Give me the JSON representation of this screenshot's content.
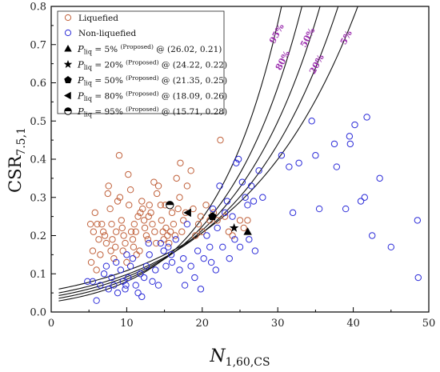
{
  "chart_data": {
    "type": "scatter",
    "xlabel_main": "N",
    "xlabel_sub": "1,60,CS",
    "ylabel_main": "CSR",
    "ylabel_sub": "7.5,1",
    "xlim": [
      0,
      50
    ],
    "ylim": [
      0.0,
      0.8
    ],
    "xticks": [
      "0",
      "10",
      "20",
      "30",
      "40",
      "50"
    ],
    "yticks": [
      "0.0",
      "0.1",
      "0.2",
      "0.3",
      "0.4",
      "0.5",
      "0.6",
      "0.7",
      "0.8"
    ],
    "grid": false,
    "legend_position": "top-left",
    "colors": {
      "liquefied": "#c0603a",
      "non_liquefied": "#2a2ad8",
      "curve": "#111111",
      "curve_label": "#9b2fae"
    },
    "series": [
      {
        "name": "Liquefied",
        "marker": "open-circle",
        "points": [
          [
            5.2,
            0.23
          ],
          [
            5.8,
            0.26
          ],
          [
            5.6,
            0.21
          ],
          [
            6.1,
            0.23
          ],
          [
            6.3,
            0.19
          ],
          [
            5.5,
            0.16
          ],
          [
            5.3,
            0.13
          ],
          [
            6.0,
            0.11
          ],
          [
            6.5,
            0.15
          ],
          [
            6.9,
            0.21
          ],
          [
            7.3,
            0.18
          ],
          [
            7.5,
            0.31
          ],
          [
            7.6,
            0.33
          ],
          [
            7.8,
            0.27
          ],
          [
            8.0,
            0.23
          ],
          [
            8.1,
            0.19
          ],
          [
            7.9,
            0.16
          ],
          [
            8.3,
            0.14
          ],
          [
            8.6,
            0.21
          ],
          [
            8.8,
            0.29
          ],
          [
            9.0,
            0.41
          ],
          [
            9.1,
            0.3
          ],
          [
            9.3,
            0.24
          ],
          [
            9.4,
            0.22
          ],
          [
            9.6,
            0.2
          ],
          [
            9.8,
            0.18
          ],
          [
            9.5,
            0.16
          ],
          [
            10.0,
            0.13
          ],
          [
            10.2,
            0.36
          ],
          [
            10.5,
            0.32
          ],
          [
            10.3,
            0.28
          ],
          [
            10.6,
            0.21
          ],
          [
            10.8,
            0.19
          ],
          [
            11.0,
            0.23
          ],
          [
            11.2,
            0.21
          ],
          [
            11.3,
            0.15
          ],
          [
            11.5,
            0.25
          ],
          [
            11.7,
            0.16
          ],
          [
            12.0,
            0.29
          ],
          [
            12.1,
            0.27
          ],
          [
            12.3,
            0.24
          ],
          [
            12.4,
            0.22
          ],
          [
            12.6,
            0.2
          ],
          [
            12.8,
            0.19
          ],
          [
            13.0,
            0.28
          ],
          [
            13.2,
            0.26
          ],
          [
            13.4,
            0.23
          ],
          [
            13.6,
            0.34
          ],
          [
            13.7,
            0.21
          ],
          [
            13.9,
            0.18
          ],
          [
            14.0,
            0.31
          ],
          [
            14.2,
            0.33
          ],
          [
            14.5,
            0.28
          ],
          [
            14.6,
            0.24
          ],
          [
            14.8,
            0.21
          ],
          [
            14.9,
            0.19
          ],
          [
            15.1,
            0.28
          ],
          [
            15.2,
            0.22
          ],
          [
            15.4,
            0.2
          ],
          [
            15.6,
            0.18
          ],
          [
            16.0,
            0.26
          ],
          [
            16.2,
            0.23
          ],
          [
            16.4,
            0.2
          ],
          [
            16.6,
            0.35
          ],
          [
            17.0,
            0.3
          ],
          [
            17.1,
            0.39
          ],
          [
            17.3,
            0.21
          ],
          [
            17.5,
            0.24
          ],
          [
            17.8,
            0.26
          ],
          [
            18.0,
            0.33
          ],
          [
            18.5,
            0.37
          ],
          [
            18.8,
            0.27
          ],
          [
            19.1,
            0.2
          ],
          [
            19.5,
            0.23
          ],
          [
            19.8,
            0.25
          ],
          [
            20.0,
            0.21
          ],
          [
            20.5,
            0.28
          ],
          [
            21.0,
            0.24
          ],
          [
            21.5,
            0.26
          ],
          [
            22.0,
            0.24
          ],
          [
            22.4,
            0.45
          ],
          [
            23.0,
            0.25
          ],
          [
            23.5,
            0.21
          ],
          [
            24.0,
            0.2
          ],
          [
            25.0,
            0.24
          ],
          [
            25.5,
            0.22
          ],
          [
            26.0,
            0.24
          ],
          [
            6.7,
            0.23
          ],
          [
            7.1,
            0.2
          ],
          [
            8.5,
            0.17
          ],
          [
            10.9,
            0.17
          ],
          [
            11.8,
            0.26
          ],
          [
            12.9,
            0.25
          ],
          [
            15.8,
            0.21
          ],
          [
            16.8,
            0.27
          ]
        ]
      },
      {
        "name": "Non-liquefied",
        "marker": "open-circle",
        "points": [
          [
            4.8,
            0.08
          ],
          [
            5.5,
            0.08
          ],
          [
            6.0,
            0.03
          ],
          [
            6.5,
            0.07
          ],
          [
            7.0,
            0.1
          ],
          [
            7.3,
            0.12
          ],
          [
            7.6,
            0.06
          ],
          [
            8.0,
            0.09
          ],
          [
            8.3,
            0.07
          ],
          [
            8.6,
            0.13
          ],
          [
            8.8,
            0.05
          ],
          [
            9.2,
            0.11
          ],
          [
            9.5,
            0.08
          ],
          [
            9.8,
            0.06
          ],
          [
            10.0,
            0.15
          ],
          [
            10.2,
            0.09
          ],
          [
            10.5,
            0.12
          ],
          [
            10.8,
            0.14
          ],
          [
            11.2,
            0.07
          ],
          [
            11.5,
            0.05
          ],
          [
            11.8,
            0.1
          ],
          [
            12.0,
            0.04
          ],
          [
            12.3,
            0.09
          ],
          [
            12.6,
            0.12
          ],
          [
            13.0,
            0.15
          ],
          [
            13.4,
            0.08
          ],
          [
            13.8,
            0.11
          ],
          [
            14.2,
            0.07
          ],
          [
            14.5,
            0.18
          ],
          [
            14.9,
            0.16
          ],
          [
            15.2,
            0.12
          ],
          [
            15.5,
            0.17
          ],
          [
            16.0,
            0.13
          ],
          [
            16.5,
            0.19
          ],
          [
            17.0,
            0.11
          ],
          [
            17.5,
            0.14
          ],
          [
            17.7,
            0.07
          ],
          [
            18.0,
            0.23
          ],
          [
            18.5,
            0.12
          ],
          [
            19.0,
            0.09
          ],
          [
            19.4,
            0.16
          ],
          [
            19.8,
            0.06
          ],
          [
            20.2,
            0.14
          ],
          [
            20.6,
            0.2
          ],
          [
            21.0,
            0.17
          ],
          [
            21.4,
            0.27
          ],
          [
            21.8,
            0.11
          ],
          [
            22.0,
            0.22
          ],
          [
            22.3,
            0.33
          ],
          [
            22.7,
            0.17
          ],
          [
            23.0,
            0.26
          ],
          [
            23.3,
            0.29
          ],
          [
            23.6,
            0.14
          ],
          [
            24.0,
            0.25
          ],
          [
            24.3,
            0.19
          ],
          [
            24.5,
            0.39
          ],
          [
            24.8,
            0.4
          ],
          [
            25.0,
            0.17
          ],
          [
            25.3,
            0.34
          ],
          [
            25.7,
            0.3
          ],
          [
            26.0,
            0.28
          ],
          [
            26.2,
            0.19
          ],
          [
            26.5,
            0.33
          ],
          [
            26.8,
            0.29
          ],
          [
            27.0,
            0.16
          ],
          [
            27.5,
            0.37
          ],
          [
            28.0,
            0.3
          ],
          [
            30.5,
            0.41
          ],
          [
            31.5,
            0.38
          ],
          [
            32.0,
            0.26
          ],
          [
            32.8,
            0.39
          ],
          [
            34.5,
            0.5
          ],
          [
            35.0,
            0.41
          ],
          [
            35.5,
            0.27
          ],
          [
            37.5,
            0.44
          ],
          [
            37.8,
            0.38
          ],
          [
            39.0,
            0.27
          ],
          [
            39.5,
            0.46
          ],
          [
            39.6,
            0.44
          ],
          [
            40.2,
            0.49
          ],
          [
            41.0,
            0.29
          ],
          [
            41.5,
            0.3
          ],
          [
            41.8,
            0.51
          ],
          [
            42.5,
            0.2
          ],
          [
            43.5,
            0.35
          ],
          [
            45.0,
            0.17
          ],
          [
            48.5,
            0.24
          ],
          [
            48.6,
            0.09
          ],
          [
            21.2,
            0.13
          ],
          [
            15.9,
            0.15
          ],
          [
            12.9,
            0.18
          ],
          [
            9.9,
            0.07
          ]
        ]
      }
    ],
    "proposed_points": [
      {
        "label": "5%",
        "marker": "triangle-up",
        "x": 26.02,
        "y": 0.21
      },
      {
        "label": "20%",
        "marker": "star",
        "x": 24.22,
        "y": 0.22
      },
      {
        "label": "50%",
        "marker": "pentagon",
        "x": 21.35,
        "y": 0.25
      },
      {
        "label": "80%",
        "marker": "triangle-left",
        "x": 18.09,
        "y": 0.26
      },
      {
        "label": "95%",
        "marker": "half-circle",
        "x": 15.71,
        "y": 0.28
      }
    ],
    "curves": [
      {
        "label": "5%",
        "x_at_top": 40.6,
        "y_at_x1": 0.06
      },
      {
        "label": "20%",
        "x_at_top": 38.0,
        "y_at_x1": 0.05
      },
      {
        "label": "50%",
        "x_at_top": 35.6,
        "y_at_x1": 0.043
      },
      {
        "label": "80%",
        "x_at_top": 33.2,
        "y_at_x1": 0.036
      },
      {
        "label": "95%",
        "x_at_top": 30.5,
        "y_at_x1": 0.029
      }
    ],
    "curve_labels": [
      "95%",
      "80%",
      "50%",
      "20%",
      "5%"
    ],
    "legend": {
      "liquefied": "Liquefied",
      "non_liquefied": "Non-liquefied",
      "p_symbol": "P",
      "p_sub": "liq",
      "proposed_tag": "(Proposed)",
      "entries": [
        {
          "pct": "5%",
          "coords": "(26.02,  0.21)"
        },
        {
          "pct": "20%",
          "coords": "(24.22,  0.22)"
        },
        {
          "pct": "50%",
          "coords": "(21.35,  0.25)"
        },
        {
          "pct": "80%",
          "coords": "(18.09,  0.26)"
        },
        {
          "pct": "95%",
          "coords": "(15.71,  0.28)"
        }
      ]
    }
  }
}
